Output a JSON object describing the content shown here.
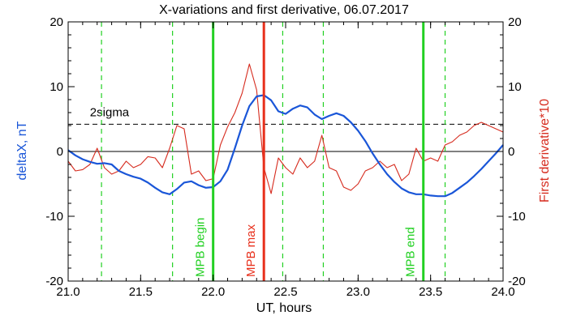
{
  "chart_data": {
    "type": "line",
    "title": "X-variations and first derivative, 06.07.2017",
    "xlabel": "UT, hours",
    "ylabel": "deltaX, nT",
    "y2label": "First derivative*10",
    "xlim": [
      21.0,
      24.0
    ],
    "ylim": [
      -20,
      20
    ],
    "x_ticks": [
      "21.0",
      "21.5",
      "22.0",
      "22.5",
      "23.0",
      "23.5",
      "24.0"
    ],
    "y_ticks": [
      "-20",
      "-10",
      "0",
      "10",
      "20"
    ],
    "grid": false,
    "colors": {
      "deltaX": "#1a56d8",
      "derivative": "#d62b1e",
      "mpb_boundary": "#22d022",
      "mpb_max": "#e8301c"
    },
    "series": [
      {
        "key": "deltaX",
        "axis": "left",
        "x": [
          21.0,
          21.05,
          21.1,
          21.15,
          21.2,
          21.25,
          21.3,
          21.35,
          21.4,
          21.45,
          21.5,
          21.55,
          21.6,
          21.65,
          21.7,
          21.75,
          21.8,
          21.85,
          21.9,
          21.95,
          22.0,
          22.05,
          22.1,
          22.15,
          22.2,
          22.25,
          22.3,
          22.35,
          22.4,
          22.45,
          22.5,
          22.55,
          22.6,
          22.65,
          22.7,
          22.75,
          22.8,
          22.85,
          22.9,
          22.95,
          23.0,
          23.05,
          23.1,
          23.15,
          23.2,
          23.25,
          23.3,
          23.35,
          23.4,
          23.45,
          23.5,
          23.55,
          23.6,
          23.65,
          23.7,
          23.75,
          23.8,
          23.85,
          23.9,
          23.95,
          24.0
        ],
        "values": [
          0.2,
          -0.6,
          -1.2,
          -1.6,
          -1.9,
          -1.8,
          -2.0,
          -3.0,
          -3.5,
          -3.9,
          -4.2,
          -4.8,
          -5.6,
          -6.3,
          -6.6,
          -5.8,
          -4.8,
          -4.6,
          -5.2,
          -5.6,
          -5.5,
          -4.6,
          -2.8,
          0.5,
          4.0,
          7.0,
          8.5,
          8.7,
          7.9,
          6.2,
          5.8,
          6.6,
          7.1,
          6.8,
          5.7,
          5.0,
          5.5,
          5.9,
          5.5,
          4.5,
          3.2,
          1.6,
          -0.3,
          -2.0,
          -3.5,
          -4.7,
          -5.7,
          -6.3,
          -6.6,
          -6.6,
          -6.8,
          -6.9,
          -6.9,
          -6.4,
          -5.6,
          -4.8,
          -3.8,
          -2.7,
          -1.5,
          -0.3,
          1.0
        ]
      },
      {
        "key": "derivative",
        "axis": "right",
        "x": [
          21.0,
          21.05,
          21.1,
          21.15,
          21.2,
          21.25,
          21.3,
          21.35,
          21.4,
          21.45,
          21.5,
          21.55,
          21.6,
          21.65,
          21.7,
          21.75,
          21.8,
          21.85,
          21.9,
          21.95,
          22.0,
          22.05,
          22.1,
          22.15,
          22.2,
          22.25,
          22.3,
          22.35,
          22.4,
          22.45,
          22.5,
          22.55,
          22.6,
          22.65,
          22.7,
          22.75,
          22.8,
          22.85,
          22.9,
          22.95,
          23.0,
          23.05,
          23.1,
          23.15,
          23.2,
          23.25,
          23.3,
          23.35,
          23.4,
          23.45,
          23.5,
          23.55,
          23.6,
          23.65,
          23.7,
          23.75,
          23.8,
          23.85,
          23.9,
          23.95,
          24.0
        ],
        "values": [
          -1.5,
          -3.0,
          -2.8,
          -2.0,
          0.5,
          -2.5,
          -3.5,
          -3.0,
          -1.5,
          -2.5,
          -2.0,
          -0.8,
          -1.0,
          -2.5,
          0.5,
          4.0,
          3.5,
          -3.5,
          -3.0,
          -4.5,
          -4.2,
          1.0,
          3.8,
          6.0,
          9.0,
          13.5,
          9.5,
          -2.5,
          -6.5,
          -1.0,
          -2.5,
          -3.5,
          -1.0,
          -2.5,
          -1.5,
          2.5,
          -2.5,
          -3.0,
          -5.5,
          -6.0,
          -5.0,
          -3.0,
          -2.5,
          -1.5,
          -2.5,
          -2.0,
          -4.5,
          -3.5,
          0.5,
          -1.5,
          -1.0,
          -1.5,
          1.0,
          1.5,
          2.5,
          3.0,
          4.0,
          4.5,
          4.0,
          3.5,
          3.0
        ]
      }
    ],
    "threshold": {
      "label": "2sigma",
      "value": 4.2
    },
    "dashed_markers": [
      21.23,
      21.72,
      22.48,
      22.76,
      23.6
    ],
    "vertical_lines": [
      {
        "x": 22.0,
        "label": "MPB begin",
        "kind": "mpb_boundary"
      },
      {
        "x": 22.35,
        "label": "MPB max",
        "kind": "mpb_max"
      },
      {
        "x": 23.45,
        "label": "MPB end",
        "kind": "mpb_boundary"
      }
    ]
  }
}
